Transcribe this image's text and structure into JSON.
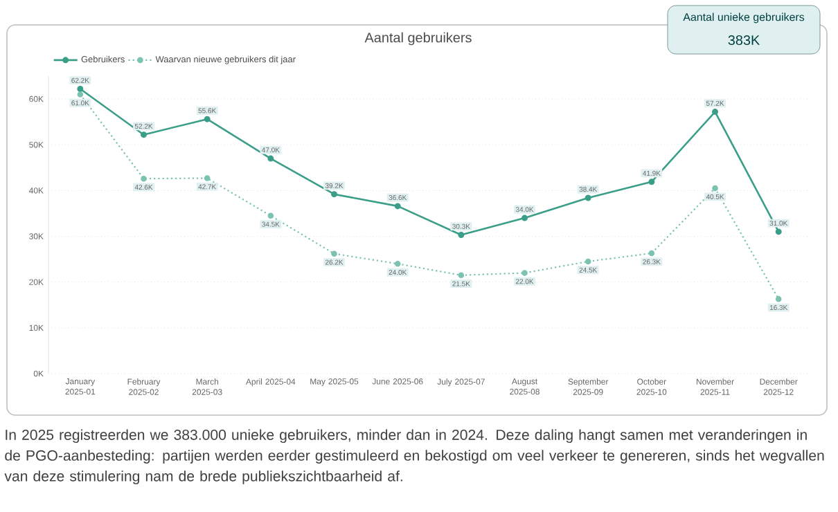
{
  "chart_data": {
    "type": "line",
    "title": "Aantal gebruikers",
    "categories": [
      "January 2025-01",
      "February 2025-02",
      "March 2025-03",
      "April 2025-04",
      "May 2025-05",
      "June 2025-06",
      "July 2025-07",
      "August 2025-08",
      "September 2025-09",
      "October 2025-10",
      "November 2025-11",
      "December 2025-12"
    ],
    "series": [
      {
        "name": "Gebruikers",
        "color": "#3a9e88",
        "line_style": "solid",
        "values": [
          62200,
          52200,
          55600,
          47000,
          39200,
          36600,
          30300,
          34000,
          38400,
          41900,
          57200,
          31000
        ],
        "value_labels": [
          "62.2K",
          "52.2K",
          "55.6K",
          "47.0K",
          "39.2K",
          "36.6K",
          "30.3K",
          "34.0K",
          "38.4K",
          "41.9K",
          "57.2K",
          "31.0K"
        ]
      },
      {
        "name": "Waarvan nieuwe gebruikers dit jaar",
        "color": "#7cc2b1",
        "line_style": "dotted",
        "values": [
          61000,
          42600,
          42700,
          34500,
          26200,
          24000,
          21500,
          22000,
          24500,
          26300,
          40500,
          16300
        ],
        "value_labels": [
          "61.0K",
          "42.6K",
          "42.7K",
          "34.5K",
          "26.2K",
          "24.0K",
          "21.5K",
          "22.0K",
          "24.5K",
          "26.3K",
          "40.5K",
          "16.3K"
        ]
      }
    ],
    "ylim": [
      0,
      65000
    ],
    "yticks": [
      {
        "value": 0,
        "label": "0K"
      },
      {
        "value": 10000,
        "label": "10K"
      },
      {
        "value": 20000,
        "label": "20K"
      },
      {
        "value": 30000,
        "label": "30K"
      },
      {
        "value": 40000,
        "label": "40K"
      },
      {
        "value": 50000,
        "label": "50K"
      },
      {
        "value": 60000,
        "label": "60K"
      }
    ],
    "grid": "y",
    "legend": "top left",
    "marker": "circle",
    "annotations": [
      "Aantal unieke gebruikers",
      "383K",
      "In 2025 registreerden we 383.000 unieke gebruikers, minder dan in 2024. Deze daling hangt samen met veranderingen in de PGO-aanbesteding: partijen werden eerder gestimuleerd en bekostigd om veel verkeer te genereren, sinds het wegvallen van deze stimulering nam de brede publiekszichtbaarheid af."
    ]
  }
}
